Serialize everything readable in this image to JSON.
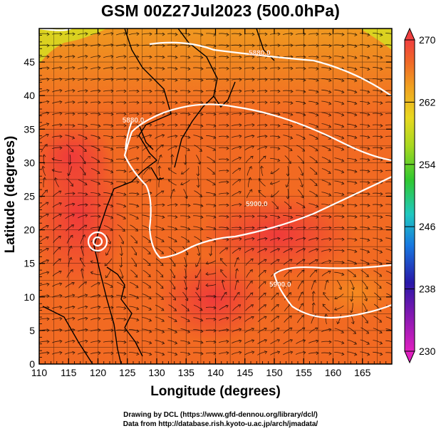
{
  "title": "GSM 00Z27Jul2023 (500.0hPa)",
  "x_axis": {
    "label": "Longitude (degrees)",
    "ticks": [
      "110",
      "115",
      "120",
      "125",
      "130",
      "135",
      "140",
      "145",
      "150",
      "155",
      "160",
      "165"
    ],
    "range": [
      110,
      170
    ]
  },
  "y_axis": {
    "label": "Latitude  (degrees)",
    "ticks": [
      "0",
      "5",
      "10",
      "15",
      "20",
      "25",
      "30",
      "35",
      "40",
      "45"
    ],
    "range": [
      0,
      50
    ]
  },
  "colorbar": {
    "ticks": [
      "230",
      "238",
      "246",
      "254",
      "262",
      "270"
    ],
    "range": [
      230,
      270
    ],
    "colors": [
      "#e020c0",
      "#3010a0",
      "#1a8fe0",
      "#20c8a0",
      "#60d020",
      "#d8e020",
      "#f0a020",
      "#f06020",
      "#f04040"
    ]
  },
  "contour_labels": [
    {
      "text": "5880.0",
      "lon": 147.5,
      "lat": 46.0
    },
    {
      "text": "5880.0",
      "lon": 126.0,
      "lat": 36.0
    },
    {
      "text": "5900.0",
      "lon": 147.0,
      "lat": 23.5
    },
    {
      "text": "5900.0",
      "lon": 151.0,
      "lat": 11.5
    }
  ],
  "credits": {
    "line1": "Drawing by DCL (https://www.gfd-dennou.org/library/dcl/)",
    "line2": "Data from http://database.rish.kyoto-u.ac.jp/arch/jmadata/"
  },
  "colors": {
    "warm_field": "#f06a20",
    "hot_field": "#f04838",
    "cool_field": "#e8c020",
    "contour_line": "#ffffff",
    "coastline": "#000000"
  }
}
